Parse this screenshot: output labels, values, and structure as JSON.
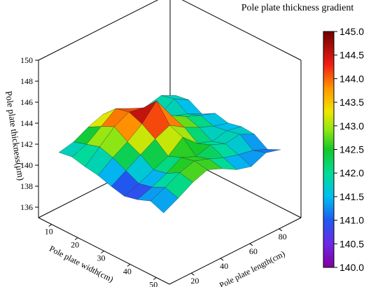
{
  "chart_data": {
    "type": "surface3d",
    "colorbar_title": "Pole plate thickness gradient",
    "x_axis": {
      "label": "Pole plate width(cm)",
      "ticks": [
        10,
        20,
        30,
        40,
        50
      ],
      "range": [
        5,
        55
      ]
    },
    "y_axis": {
      "label": "Pole plate length(cm)",
      "ticks": [
        20,
        40,
        60,
        80
      ],
      "range": [
        5,
        95
      ]
    },
    "z_axis": {
      "label": "Pole plate thickness(μm)",
      "ticks": [
        136,
        138,
        140,
        142,
        144,
        146,
        148,
        150
      ],
      "range": [
        135,
        150
      ]
    },
    "colorbar": {
      "ticks": [
        "145.0",
        "144.5",
        "144.0",
        "143.5",
        "143.0",
        "142.5",
        "142.0",
        "141.5",
        "141.0",
        "140.5",
        "140.0"
      ],
      "range": [
        140,
        145
      ]
    },
    "x_values": [
      10,
      15,
      20,
      25,
      30,
      35,
      40,
      45,
      50
    ],
    "y_values": [
      10,
      20,
      30,
      40,
      50,
      60,
      70,
      80,
      90
    ],
    "z_values": [
      [
        141.5,
        141.8,
        142.5,
        143.0,
        142.2,
        141.5,
        141.7,
        142.0,
        141.3
      ],
      [
        141.7,
        142.2,
        143.2,
        144.2,
        143.5,
        142.3,
        141.5,
        142.3,
        141.5
      ],
      [
        141.4,
        142.6,
        143.8,
        144.5,
        144.2,
        143.2,
        142.0,
        141.5,
        140.8
      ],
      [
        141.2,
        142.2,
        143.0,
        144.0,
        145.5,
        143.4,
        142.6,
        142.0,
        141.5
      ],
      [
        140.8,
        141.6,
        142.4,
        143.2,
        143.8,
        142.9,
        142.2,
        141.6,
        141.2
      ],
      [
        140.5,
        141.0,
        141.6,
        142.2,
        143.3,
        142.0,
        141.5,
        141.8,
        141.5
      ],
      [
        140.8,
        141.3,
        141.9,
        142.7,
        142.1,
        142.5,
        141.9,
        142.1,
        141.4
      ],
      [
        141.3,
        141.9,
        142.6,
        143.0,
        142.5,
        141.9,
        141.5,
        141.2,
        140.6
      ],
      [
        140.8,
        141.5,
        142.3,
        142.8,
        142.2,
        141.4,
        141.0,
        141.6,
        141.2
      ]
    ],
    "grid": false,
    "legend_position": "right"
  }
}
